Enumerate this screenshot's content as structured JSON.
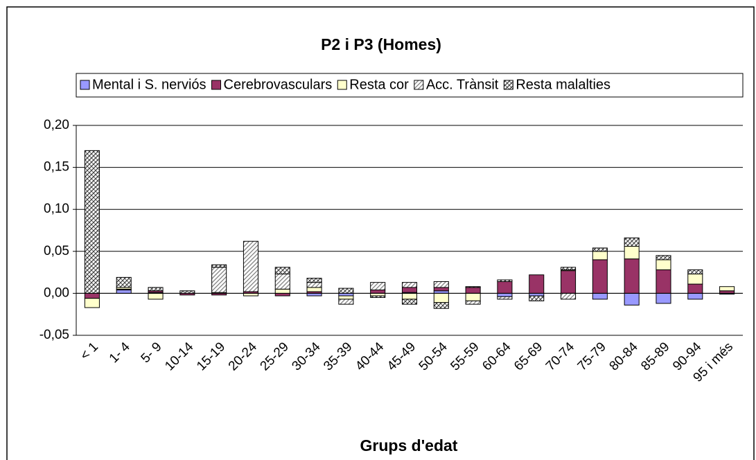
{
  "chart_data": {
    "type": "bar",
    "stacked": true,
    "title": "P2 i P3 (Homes)",
    "xlabel": "Grups d'edat",
    "categories": [
      "< 1",
      "1- 4",
      "5- 9",
      "10-14",
      "15-19",
      "20-24",
      "25-29",
      "30-34",
      "35-39",
      "40-44",
      "45-49",
      "50-54",
      "55-59",
      "60-64",
      "65-69",
      "70-74",
      "75-79",
      "80-84",
      "85-89",
      "90-94",
      "95 i més"
    ],
    "series": [
      {
        "name": "Mental i S. nerviós",
        "color": "#9999ff",
        "values": [
          0,
          0.004,
          0.001,
          0,
          0,
          0,
          0,
          -0.003,
          -0.003,
          0,
          0.001,
          0.003,
          0,
          -0.004,
          -0.003,
          0,
          -0.007,
          -0.014,
          -0.012,
          -0.007,
          -0.001
        ]
      },
      {
        "name": "Cerebrovasculars",
        "color": "#993366",
        "values": [
          -0.006,
          0.001,
          0.002,
          -0.002,
          -0.002,
          0.002,
          -0.003,
          0.002,
          0,
          0.004,
          0.006,
          0.004,
          0.007,
          0.014,
          0.022,
          0.027,
          0.04,
          0.041,
          0.028,
          0.011,
          0.003
        ]
      },
      {
        "name": "Resta cor",
        "color": "#ffffcc",
        "values": [
          -0.011,
          0.002,
          -0.007,
          0,
          0.001,
          -0.003,
          0.005,
          0.005,
          -0.004,
          -0.003,
          -0.007,
          -0.011,
          -0.009,
          0,
          0,
          0.001,
          0.01,
          0.015,
          0.012,
          0.012,
          0.005
        ]
      },
      {
        "name": "Acc. Trànsit",
        "color": "#808080",
        "hatch": "diagonal",
        "values": [
          0,
          0,
          0,
          0,
          0.03,
          0.06,
          0.018,
          0.006,
          -0.006,
          0.009,
          0.006,
          0.007,
          -0.004,
          -0.003,
          0,
          -0.007,
          0,
          0,
          0,
          0,
          0
        ]
      },
      {
        "name": "Resta malalties",
        "color": "#404040",
        "hatch": "crosshatch",
        "values": [
          0.17,
          0.012,
          0.004,
          0.003,
          0.003,
          0,
          0.008,
          0.005,
          0.006,
          -0.002,
          -0.006,
          -0.007,
          0.001,
          0.002,
          -0.006,
          0.003,
          0.004,
          0.01,
          0.005,
          0.005,
          0
        ]
      }
    ],
    "ylim": [
      -0.05,
      0.2
    ],
    "yticks": [
      {
        "value": -0.05,
        "label": "-0,05"
      },
      {
        "value": 0,
        "label": "0,00"
      },
      {
        "value": 0.05,
        "label": "0,05"
      },
      {
        "value": 0.1,
        "label": "0,10"
      },
      {
        "value": 0.15,
        "label": "0,15"
      },
      {
        "value": 0.2,
        "label": "0,20"
      }
    ],
    "grid": true,
    "legend": "top"
  }
}
